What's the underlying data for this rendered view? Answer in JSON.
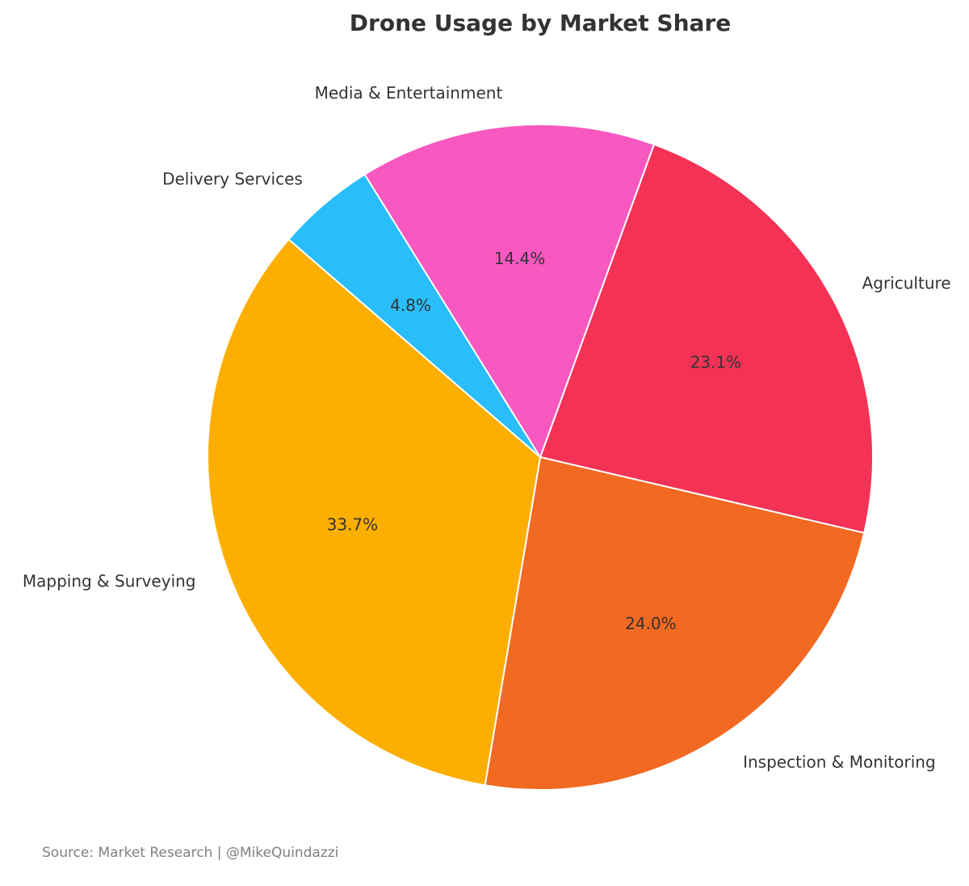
{
  "chart_data": {
    "type": "pie",
    "title": "Drone Usage by Market Share",
    "categories": [
      "Agriculture",
      "Inspection & Monitoring",
      "Mapping & Surveying",
      "Delivery Services",
      "Media & Entertainment"
    ],
    "values": [
      23.1,
      24.0,
      33.7,
      4.8,
      14.4
    ],
    "value_labels": [
      "23.1%",
      "24.0%",
      "33.7%",
      "4.8%",
      "14.4%"
    ],
    "colors": [
      "#F43256",
      "#F26922",
      "#FCAF00",
      "#29BDFA",
      "#F858C0"
    ],
    "start_angle_deg": 70,
    "direction": "clockwise",
    "legend": "none"
  },
  "footer": {
    "source": "Source: Market Research | @MikeQuindazzi"
  }
}
